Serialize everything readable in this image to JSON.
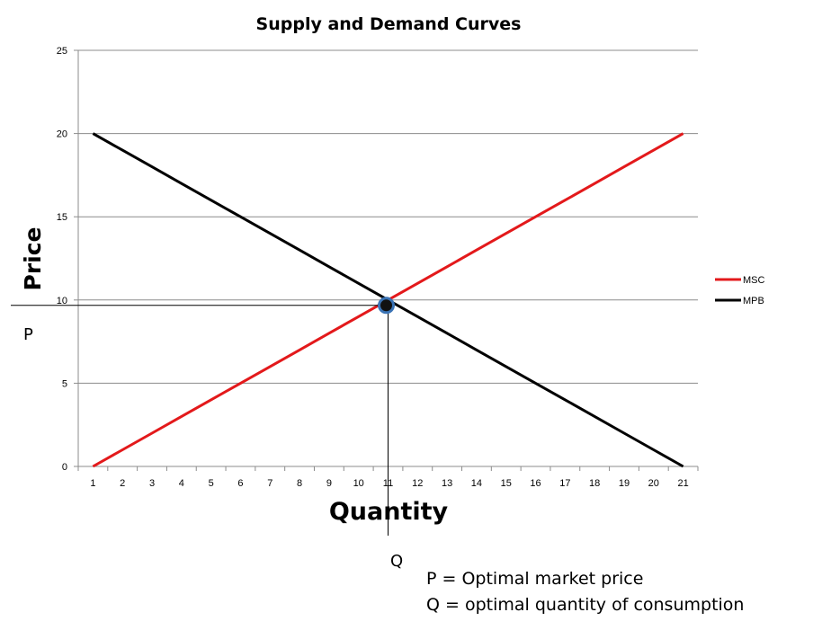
{
  "chart_data": {
    "type": "line",
    "title": "Supply and Demand Curves",
    "xlabel": "Quantity",
    "ylabel": "Price",
    "x": [
      1,
      2,
      3,
      4,
      5,
      6,
      7,
      8,
      9,
      10,
      11,
      12,
      13,
      14,
      15,
      16,
      17,
      18,
      19,
      20,
      21
    ],
    "ylim": [
      0,
      25
    ],
    "yticks": [
      0,
      5,
      10,
      15,
      20,
      25
    ],
    "grid": "horizontal",
    "legend_position": "right",
    "series": [
      {
        "name": "MSC",
        "color": "#e3191b",
        "values": [
          0,
          1,
          2,
          3,
          4,
          5,
          6,
          7,
          8,
          9,
          10,
          11,
          12,
          13,
          14,
          15,
          16,
          17,
          18,
          19,
          20
        ]
      },
      {
        "name": "MPB",
        "color": "#000000",
        "values": [
          20,
          19,
          18,
          17,
          16,
          15,
          14,
          13,
          12,
          11,
          10,
          9,
          8,
          7,
          6,
          5,
          4,
          3,
          2,
          1,
          0
        ]
      }
    ],
    "equilibrium": {
      "x": 11,
      "y": 10
    }
  },
  "annotations": {
    "p_label": "P",
    "q_label": "Q",
    "p_note": "P = Optimal market price",
    "q_note": "Q = optimal quantity of consumption"
  }
}
